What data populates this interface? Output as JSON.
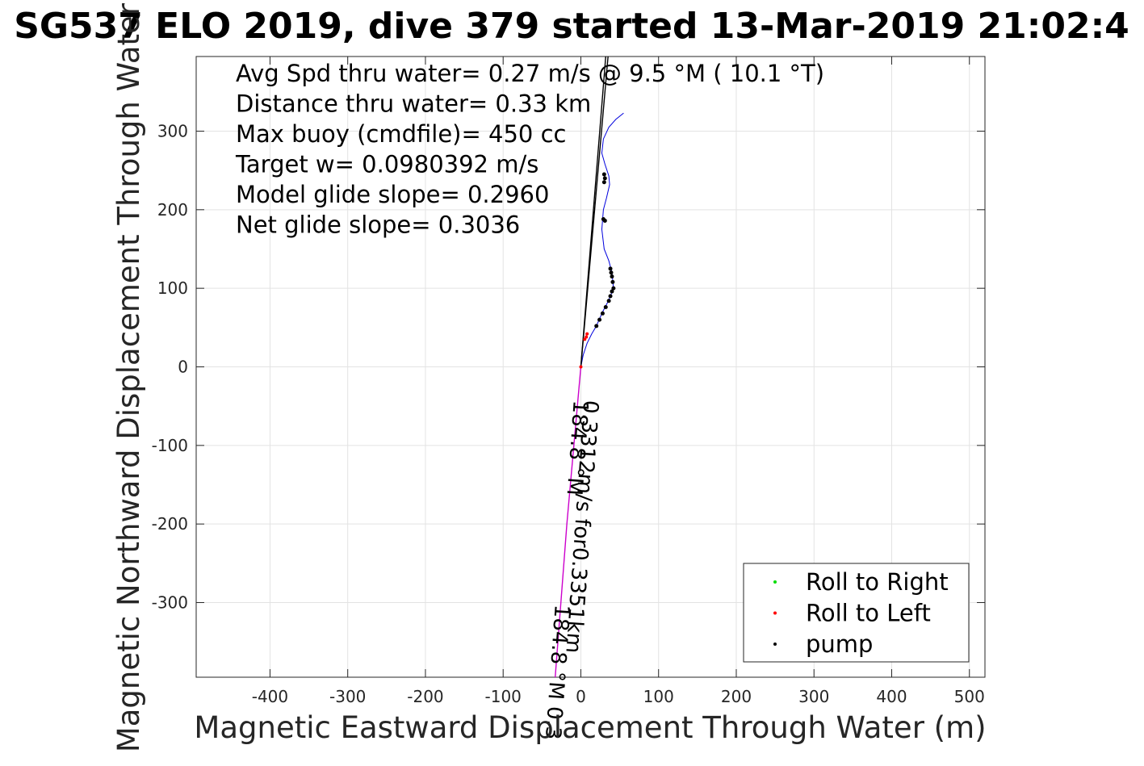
{
  "chart_data": {
    "type": "line",
    "title": "SG537 ELO 2019, dive 379 started 13-Mar-2019 21:02:4",
    "xlabel": "Magnetic Eastward Displacement Through Water (m)",
    "ylabel": "Magnetic Northward Displacement Through Water (",
    "xlim": [
      -495,
      520
    ],
    "ylim": [
      -395,
      395
    ],
    "xticks": [
      -400,
      -300,
      -200,
      -100,
      0,
      100,
      200,
      300,
      400,
      500
    ],
    "yticks": [
      -300,
      -200,
      -100,
      0,
      100,
      200,
      300
    ],
    "grid": true,
    "annotations": [
      "Avg Spd thru water=  0.27 m/s @   9.5 °M ( 10.1 °T)",
      "Distance thru water=  0.33 km",
      "Max buoy (cmdfile)= 450 cc",
      "Target w= 0.0980392 m/s",
      "Model glide slope= 0.2960",
      "Net glide slope= 0.3036"
    ],
    "rotated_labels": [
      {
        "text": "0.3312m/s for0.3351km",
        "x": 4,
        "y": -42
      },
      {
        "text": "184.8 °M",
        "x": -9,
        "y": -42
      },
      {
        "text": "184.8 °M    0.3",
        "x": -33,
        "y": -302
      }
    ],
    "series": [
      {
        "name": "",
        "role": "track",
        "color": "#0000dd",
        "x": [
          0,
          3,
          8,
          14,
          20,
          28,
          36,
          42,
          40,
          36,
          30,
          27,
          29,
          33,
          37,
          36,
          31,
          27,
          29,
          36,
          45,
          55
        ],
        "y": [
          0,
          15,
          30,
          42,
          52,
          70,
          85,
          100,
          120,
          135,
          150,
          175,
          200,
          215,
          232,
          243,
          258,
          272,
          290,
          305,
          315,
          323
        ]
      },
      {
        "name": "",
        "role": "course-line",
        "color": "#000000",
        "x": [
          0,
          32
        ],
        "y": [
          0,
          395
        ]
      },
      {
        "name": "",
        "role": "course-line",
        "color": "#000000",
        "x": [
          0,
          35
        ],
        "y": [
          0,
          395
        ]
      },
      {
        "name": "",
        "role": "heading-line",
        "color": "#cc00cc",
        "x": [
          0,
          -18,
          -33
        ],
        "y": [
          0,
          -200,
          -395
        ]
      }
    ],
    "markers": [
      {
        "name": "Roll to Right",
        "color": "#00dd00",
        "x": [],
        "y": []
      },
      {
        "name": "Roll to Left",
        "color": "#ff0000",
        "x": [
          0,
          5,
          7,
          8
        ],
        "y": [
          0,
          35,
          38,
          42
        ]
      },
      {
        "name": "pump",
        "color": "#000000",
        "x": [
          20,
          24,
          28,
          32,
          36,
          38,
          40,
          42,
          41,
          40,
          39,
          38,
          30,
          31,
          30,
          31,
          29
        ],
        "y": [
          52,
          60,
          68,
          76,
          84,
          90,
          96,
          100,
          108,
          115,
          120,
          125,
          235,
          240,
          245,
          186,
          188
        ]
      }
    ],
    "legend": {
      "position": "bottom-right",
      "entries": [
        "Roll to Right",
        "Roll to Left",
        "pump"
      ]
    }
  }
}
